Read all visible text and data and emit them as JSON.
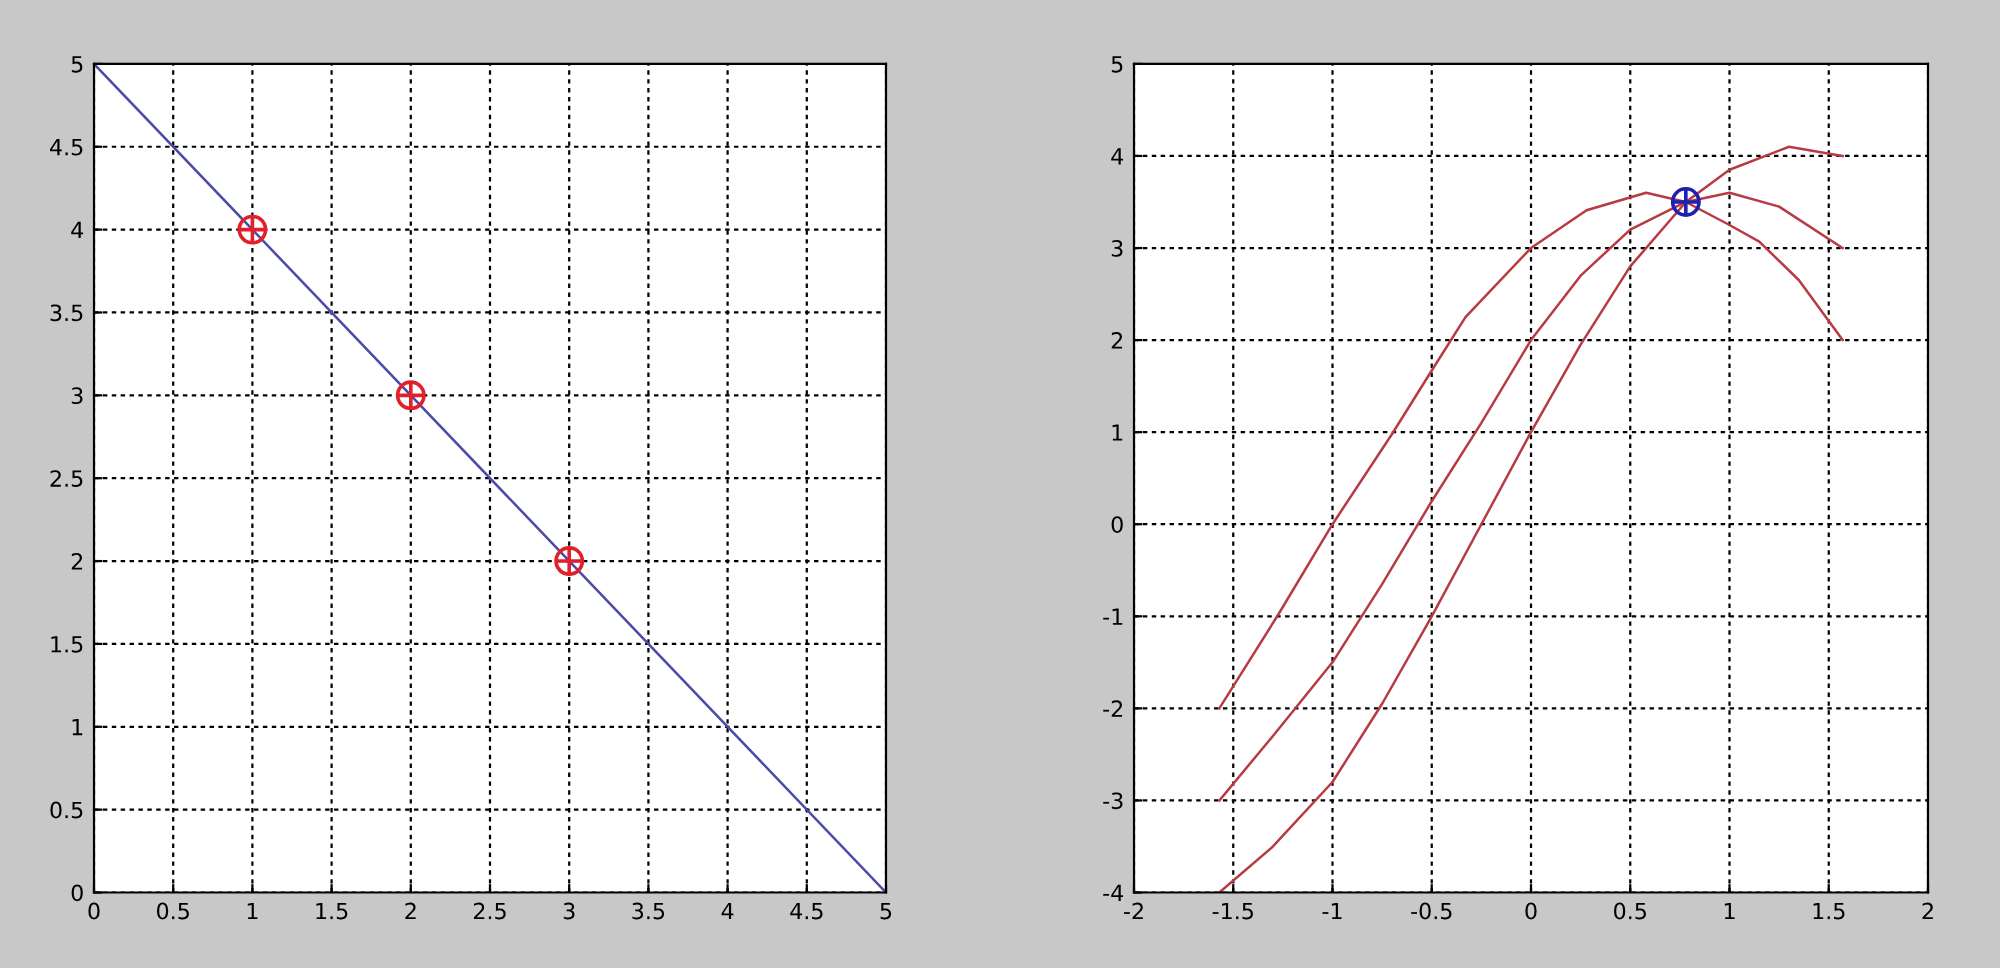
{
  "chart_data": [
    {
      "type": "line",
      "xlim": [
        0,
        5
      ],
      "ylim": [
        0,
        5
      ],
      "xticks": [
        0,
        0.5,
        1,
        1.5,
        2,
        2.5,
        3,
        3.5,
        4,
        4.5,
        5
      ],
      "yticks": [
        0,
        0.5,
        1,
        1.5,
        2,
        2.5,
        3,
        3.5,
        4,
        4.5,
        5
      ],
      "grid": true,
      "series": [
        {
          "color": "#4a4aa8",
          "x": [
            0,
            5
          ],
          "values": [
            5,
            0
          ]
        },
        {
          "type": "scatter",
          "color": "#e0202a",
          "marker": "circle",
          "x": [
            1,
            2,
            3
          ],
          "values": [
            4,
            3,
            2
          ]
        }
      ]
    },
    {
      "type": "line",
      "xlim": [
        -2,
        2
      ],
      "ylim": [
        -4,
        5
      ],
      "xticks": [
        -2,
        -1.5,
        -1,
        -0.5,
        0,
        0.5,
        1,
        1.5,
        2
      ],
      "yticks": [
        -4,
        -3,
        -2,
        -1,
        0,
        1,
        2,
        3,
        4,
        5
      ],
      "grid": true,
      "series": [
        {
          "color": "#b83a44",
          "x": [
            -1.57,
            -1.27,
            -1.0,
            -0.7,
            -0.5,
            -0.33,
            0,
            0.28,
            0.58,
            0.78,
            1.0,
            1.15,
            1.35,
            1.57
          ],
          "values": [
            -2,
            -0.97,
            0,
            0.98,
            1.67,
            2.25,
            3.0,
            3.41,
            3.6,
            3.5,
            3.25,
            3.07,
            2.65,
            2.0
          ]
        },
        {
          "color": "#b83a44",
          "x": [
            -1.57,
            -1.3,
            -1.0,
            -0.75,
            -0.5,
            -0.25,
            0,
            0.25,
            0.5,
            0.78,
            1.0,
            1.25,
            1.57
          ],
          "values": [
            -3,
            -2.3,
            -1.5,
            -0.65,
            0.25,
            1.1,
            2.0,
            2.7,
            3.2,
            3.5,
            3.6,
            3.45,
            3.0
          ]
        },
        {
          "color": "#b83a44",
          "x": [
            -1.57,
            -1.3,
            -1.0,
            -0.75,
            -0.5,
            -0.25,
            0,
            0.25,
            0.5,
            0.78,
            1.0,
            1.3,
            1.57
          ],
          "values": [
            -4,
            -3.5,
            -2.8,
            -1.95,
            -1.0,
            0.0,
            1.0,
            1.95,
            2.8,
            3.5,
            3.85,
            4.1,
            4.0
          ]
        },
        {
          "type": "scatter",
          "color": "#2020b0",
          "marker": "circle",
          "x": [
            0.78
          ],
          "values": [
            3.5
          ]
        }
      ]
    }
  ]
}
